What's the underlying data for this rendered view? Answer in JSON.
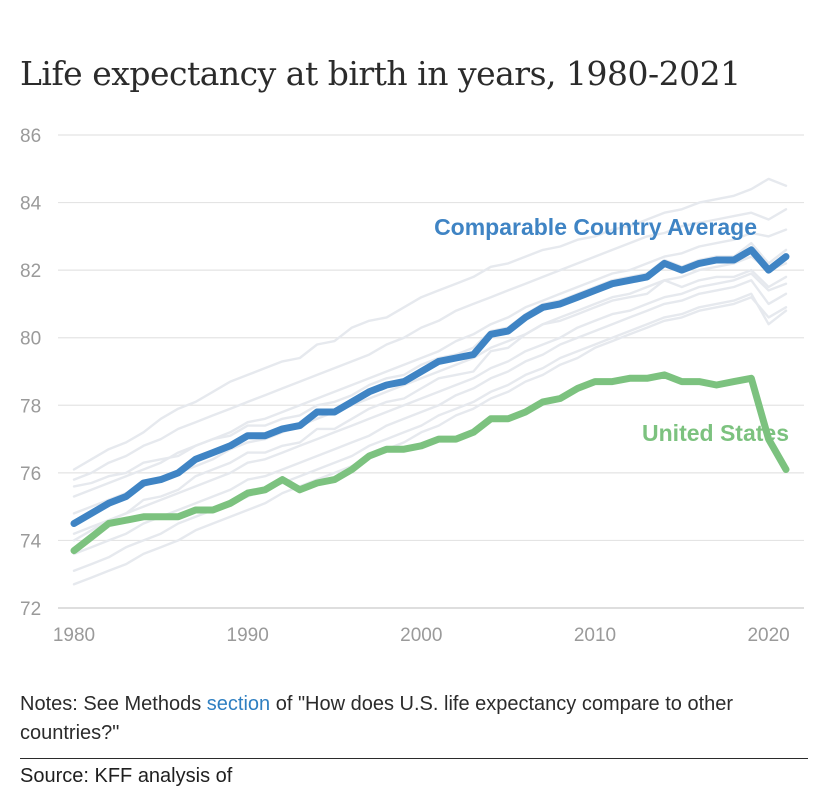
{
  "chart_data": {
    "type": "line",
    "title": "Life expectancy at birth in years, 1980-2021",
    "xlabel": "",
    "ylabel": "",
    "xlim": [
      1980,
      2021
    ],
    "ylim": [
      72,
      86
    ],
    "x_ticks": [
      1980,
      1990,
      2000,
      2010,
      2020
    ],
    "y_ticks": [
      72,
      74,
      76,
      78,
      80,
      82,
      84,
      86
    ],
    "grid": true,
    "x": [
      1980,
      1981,
      1982,
      1983,
      1984,
      1985,
      1986,
      1987,
      1988,
      1989,
      1990,
      1991,
      1992,
      1993,
      1994,
      1995,
      1996,
      1997,
      1998,
      1999,
      2000,
      2001,
      2002,
      2003,
      2004,
      2005,
      2006,
      2007,
      2008,
      2009,
      2010,
      2011,
      2012,
      2013,
      2014,
      2015,
      2016,
      2017,
      2018,
      2019,
      2020,
      2021
    ],
    "series": [
      {
        "name": "Comparable Country Average",
        "color": "#3f84c4",
        "values": [
          74.5,
          74.8,
          75.1,
          75.3,
          75.7,
          75.8,
          76.0,
          76.4,
          76.6,
          76.8,
          77.1,
          77.1,
          77.3,
          77.4,
          77.8,
          77.8,
          78.1,
          78.4,
          78.6,
          78.7,
          79.0,
          79.3,
          79.4,
          79.5,
          80.1,
          80.2,
          80.6,
          80.9,
          81.0,
          81.2,
          81.4,
          81.6,
          81.7,
          81.8,
          82.2,
          82.0,
          82.2,
          82.3,
          82.3,
          82.6,
          82.0,
          82.4
        ]
      },
      {
        "name": "United States",
        "color": "#7cc27f",
        "values": [
          73.7,
          74.1,
          74.5,
          74.6,
          74.7,
          74.7,
          74.7,
          74.9,
          74.9,
          75.1,
          75.4,
          75.5,
          75.8,
          75.5,
          75.7,
          75.8,
          76.1,
          76.5,
          76.7,
          76.7,
          76.8,
          77.0,
          77.0,
          77.2,
          77.6,
          77.6,
          77.8,
          78.1,
          78.2,
          78.5,
          78.7,
          78.7,
          78.8,
          78.8,
          78.9,
          78.7,
          78.7,
          78.6,
          78.7,
          78.8,
          77.0,
          76.1
        ]
      }
    ],
    "background_series": [
      {
        "name": "peer-1",
        "values": [
          76.1,
          76.4,
          76.7,
          76.9,
          77.2,
          77.6,
          77.9,
          78.1,
          78.4,
          78.7,
          78.9,
          79.1,
          79.3,
          79.4,
          79.8,
          79.9,
          80.3,
          80.5,
          80.6,
          80.9,
          81.2,
          81.4,
          81.6,
          81.8,
          82.1,
          82.2,
          82.4,
          82.6,
          82.7,
          82.9,
          83.0,
          83.2,
          83.3,
          83.5,
          83.7,
          83.8,
          84.0,
          84.1,
          84.2,
          84.4,
          84.7,
          84.5
        ]
      },
      {
        "name": "peer-2",
        "values": [
          75.8,
          76.0,
          76.3,
          76.5,
          76.8,
          77.0,
          77.3,
          77.5,
          77.7,
          77.9,
          78.1,
          78.3,
          78.5,
          78.7,
          78.9,
          79.1,
          79.3,
          79.5,
          79.8,
          80.0,
          80.3,
          80.5,
          80.8,
          81.0,
          81.2,
          81.4,
          81.6,
          81.8,
          82.0,
          82.2,
          82.4,
          82.6,
          82.8,
          83.0,
          83.1,
          83.3,
          83.4,
          83.5,
          83.6,
          83.7,
          83.5,
          83.8
        ]
      },
      {
        "name": "peer-3",
        "values": [
          75.3,
          75.5,
          75.7,
          75.9,
          76.1,
          76.3,
          76.6,
          76.8,
          77.0,
          77.2,
          77.5,
          77.6,
          77.8,
          78.0,
          78.2,
          78.4,
          78.6,
          78.8,
          79.0,
          79.2,
          79.4,
          79.6,
          79.9,
          80.1,
          80.4,
          80.6,
          80.9,
          81.1,
          81.3,
          81.5,
          81.7,
          81.9,
          82.0,
          82.2,
          82.4,
          82.5,
          82.7,
          82.8,
          82.9,
          83.1,
          83.0,
          83.2
        ]
      },
      {
        "name": "peer-4",
        "values": [
          74.8,
          75.0,
          75.2,
          75.4,
          75.6,
          75.8,
          76.0,
          76.2,
          76.4,
          76.7,
          76.9,
          77.0,
          77.2,
          77.4,
          77.6,
          77.8,
          78.0,
          78.2,
          78.4,
          78.6,
          78.8,
          79.0,
          79.2,
          79.4,
          79.7,
          79.9,
          80.1,
          80.4,
          80.6,
          80.8,
          81.0,
          81.2,
          81.3,
          81.5,
          81.7,
          81.8,
          82.0,
          82.1,
          82.2,
          82.4,
          82.0,
          82.2
        ]
      },
      {
        "name": "peer-5",
        "values": [
          74.2,
          74.4,
          74.6,
          74.8,
          75.0,
          75.2,
          75.4,
          75.6,
          75.8,
          76.0,
          76.3,
          76.4,
          76.6,
          76.8,
          77.0,
          77.2,
          77.4,
          77.6,
          77.8,
          78.0,
          78.2,
          78.4,
          78.6,
          78.8,
          79.1,
          79.3,
          79.6,
          79.8,
          80.0,
          80.3,
          80.5,
          80.7,
          80.8,
          81.0,
          81.2,
          81.3,
          81.5,
          81.6,
          81.7,
          81.9,
          81.4,
          81.6
        ]
      },
      {
        "name": "peer-6",
        "values": [
          73.6,
          73.8,
          74.0,
          74.2,
          74.5,
          74.7,
          74.9,
          75.1,
          75.3,
          75.5,
          75.8,
          75.9,
          76.1,
          76.3,
          76.5,
          76.7,
          76.9,
          77.1,
          77.4,
          77.6,
          77.8,
          78.0,
          78.3,
          78.5,
          78.8,
          79.0,
          79.3,
          79.5,
          79.8,
          80.0,
          80.2,
          80.4,
          80.6,
          80.8,
          81.0,
          81.1,
          81.3,
          81.4,
          81.5,
          81.7,
          81.0,
          81.3
        ]
      },
      {
        "name": "peer-7",
        "values": [
          73.1,
          73.3,
          73.5,
          73.8,
          74.0,
          74.2,
          74.5,
          74.7,
          74.9,
          75.1,
          75.3,
          75.5,
          75.7,
          75.9,
          76.1,
          76.3,
          76.5,
          76.8,
          77.0,
          77.2,
          77.4,
          77.7,
          77.9,
          78.1,
          78.4,
          78.6,
          78.9,
          79.1,
          79.4,
          79.6,
          79.8,
          80.0,
          80.2,
          80.4,
          80.6,
          80.7,
          80.9,
          81.0,
          81.1,
          81.3,
          80.4,
          80.8
        ]
      },
      {
        "name": "peer-8",
        "values": [
          72.7,
          72.9,
          73.1,
          73.3,
          73.6,
          73.8,
          74.0,
          74.3,
          74.5,
          74.7,
          74.9,
          75.1,
          75.4,
          75.6,
          75.8,
          76.0,
          76.2,
          76.5,
          76.7,
          76.9,
          77.2,
          77.4,
          77.7,
          77.9,
          78.2,
          78.4,
          78.7,
          78.9,
          79.2,
          79.4,
          79.7,
          79.9,
          80.1,
          80.3,
          80.5,
          80.6,
          80.8,
          80.9,
          81.0,
          81.2,
          80.6,
          80.9
        ]
      },
      {
        "name": "peer-9",
        "values": [
          75.6,
          75.7,
          75.9,
          76.0,
          76.3,
          76.4,
          76.5,
          76.8,
          77.0,
          77.1,
          77.4,
          77.4,
          77.6,
          77.7,
          78.0,
          78.1,
          78.3,
          78.6,
          78.8,
          78.9,
          79.2,
          79.4,
          79.5,
          79.7,
          80.2,
          80.3,
          80.7,
          81.0,
          81.1,
          81.3,
          81.5,
          81.7,
          81.8,
          81.9,
          82.3,
          82.1,
          82.3,
          82.4,
          82.4,
          82.8,
          82.2,
          82.6
        ]
      },
      {
        "name": "peer-10",
        "values": [
          74.0,
          74.3,
          74.6,
          74.8,
          75.2,
          75.3,
          75.5,
          75.9,
          76.1,
          76.3,
          76.6,
          76.6,
          76.8,
          76.9,
          77.3,
          77.3,
          77.6,
          77.9,
          78.1,
          78.2,
          78.5,
          78.8,
          78.9,
          79.0,
          79.6,
          79.7,
          80.1,
          80.4,
          80.5,
          80.7,
          80.9,
          81.1,
          81.2,
          81.3,
          81.7,
          81.5,
          81.7,
          81.8,
          81.8,
          82.0,
          81.5,
          81.8
        ]
      }
    ]
  },
  "notes": {
    "prefix": "Notes: See Methods ",
    "link_text": "section",
    "suffix": " of \"How does U.S. life expectancy compare to other countries?\""
  },
  "source": {
    "text": "Source: KFF analysis of"
  }
}
